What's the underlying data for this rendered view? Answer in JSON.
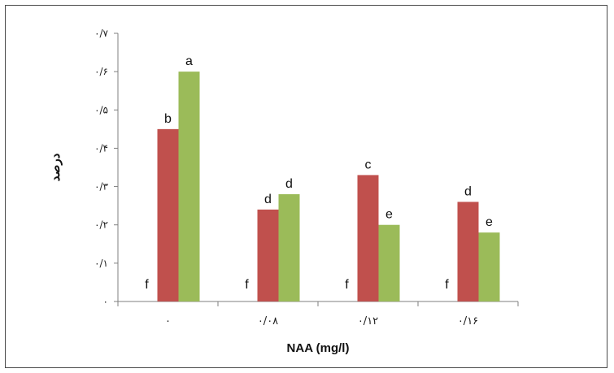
{
  "chart_data": {
    "type": "bar",
    "categories": [
      "۰",
      "۰/۰۸",
      "۰/۱۲",
      "۰/۱۶"
    ],
    "series": [
      {
        "values": [
          0,
          0,
          0,
          0
        ],
        "labels": [
          "f",
          "f",
          "f",
          "f"
        ],
        "color": "#c0504d"
      },
      {
        "values": [
          0.45,
          0.24,
          0.33,
          0.26
        ],
        "labels": [
          "b",
          "d",
          "c",
          "d"
        ],
        "color": "#c0504d"
      },
      {
        "values": [
          0.6,
          0.28,
          0.2,
          0.18
        ],
        "labels": [
          "a",
          "d",
          "e",
          "e"
        ],
        "color": "#9bbb59"
      }
    ],
    "ylim": [
      0,
      0.7
    ],
    "yticks": [
      0,
      0.1,
      0.2,
      0.3,
      0.4,
      0.5,
      0.6,
      0.7
    ],
    "ytick_labels": [
      "۰",
      "۰/۱",
      "۰/۲",
      "۰/۳",
      "۰/۴",
      "۰/۵",
      "۰/۶",
      "۰/۷"
    ],
    "xlabel": "NAA (mg/l)",
    "ylabel": "درصد",
    "grid": false,
    "legend": "none"
  }
}
